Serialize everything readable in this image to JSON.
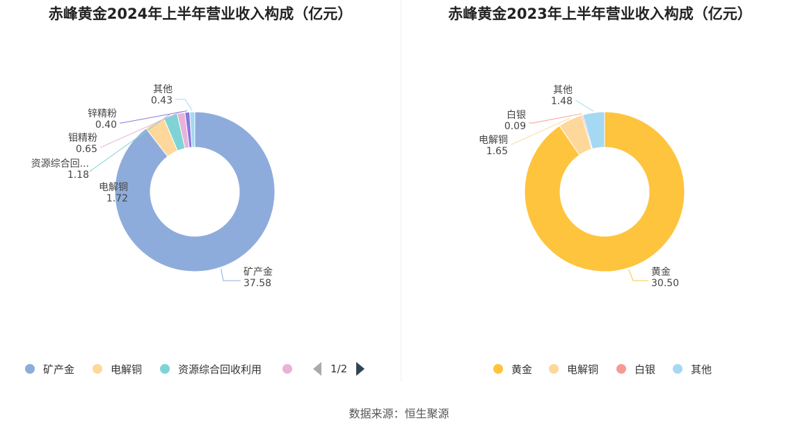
{
  "chart_data": [
    {
      "type": "pie",
      "title": "赤峰黄金2024年上半年营业收入构成（亿元）",
      "unit": "亿元",
      "slices": [
        {
          "name": "矿产金",
          "label": "矿产金",
          "value": 37.58,
          "display": "37.58",
          "color": "#8eacdb"
        },
        {
          "name": "电解铜",
          "label": "电解铜",
          "value": 1.72,
          "display": "1.72",
          "color": "#fdd89a"
        },
        {
          "name": "资源综合回收利用",
          "label": "资源综合回...",
          "value": 1.18,
          "display": "1.18",
          "color": "#7fd3d5"
        },
        {
          "name": "钼精粉",
          "label": "钼精粉",
          "value": 0.65,
          "display": "0.65",
          "color": "#e9b3d9"
        },
        {
          "name": "锌精粉",
          "label": "锌精粉",
          "value": 0.4,
          "display": "0.40",
          "color": "#8578e0"
        },
        {
          "name": "其他",
          "label": "其他",
          "value": 0.43,
          "display": "0.43",
          "color": "#a5d8f3"
        }
      ],
      "legend": {
        "placement": "bottom",
        "visible_items": [
          "矿产金",
          "电解铜",
          "资源综合回收利用",
          ""
        ],
        "page": "1/2"
      }
    },
    {
      "type": "pie",
      "title": "赤峰黄金2023年上半年营业收入构成（亿元）",
      "unit": "亿元",
      "slices": [
        {
          "name": "黄金",
          "label": "黄金",
          "value": 30.5,
          "display": "30.50",
          "color": "#fec43d"
        },
        {
          "name": "电解铜",
          "label": "电解铜",
          "value": 1.65,
          "display": "1.65",
          "color": "#fdd89a"
        },
        {
          "name": "白银",
          "label": "白银",
          "value": 0.09,
          "display": "0.09",
          "color": "#f59b96"
        },
        {
          "name": "其他",
          "label": "其他",
          "value": 1.48,
          "display": "1.48",
          "color": "#a5d8f3"
        }
      ],
      "legend": {
        "placement": "bottom",
        "visible_items": [
          "黄金",
          "电解铜",
          "白银",
          "其他"
        ]
      }
    }
  ],
  "footer": {
    "source": "数据来源：恒生聚源"
  }
}
